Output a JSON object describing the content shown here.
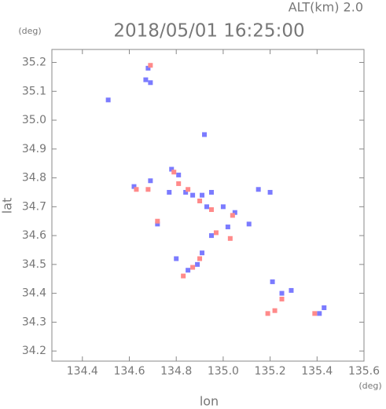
{
  "chart_data": {
    "type": "scatter",
    "title": "2018/05/01 16:25:00",
    "altitude_label": "ALT(km) 2.0",
    "x_label": "lon",
    "y_label": "lat",
    "x_unit": "(deg)",
    "y_unit": "(deg)",
    "xlim": [
      134.27,
      135.6
    ],
    "ylim": [
      34.165,
      35.245
    ],
    "xticks": [
      134.4,
      134.6,
      134.8,
      {
        "value": 135,
        "label": "135.0"
      },
      135.2,
      135.4,
      135.6
    ],
    "yticks": [
      34.2,
      34.3,
      34.4,
      34.5,
      34.6,
      34.7,
      34.8,
      34.9,
      {
        "value": 35,
        "label": "35.0"
      },
      35.1,
      35.2
    ],
    "series": [
      {
        "color": "#7b7bff",
        "x": [
          134.68,
          134.67,
          134.69,
          134.51,
          134.92,
          134.78,
          134.81,
          134.62,
          134.69,
          134.77,
          134.84,
          134.87,
          134.91,
          134.95,
          134.93,
          135.0,
          135.05,
          135.02,
          134.95,
          134.91,
          134.89,
          134.85,
          134.8,
          135.15,
          135.2,
          135.21,
          135.25,
          135.29,
          135.41,
          135.43,
          134.72,
          135.11
        ],
        "y": [
          35.18,
          35.14,
          35.13,
          35.07,
          34.95,
          34.83,
          34.81,
          34.77,
          34.79,
          34.75,
          34.75,
          34.74,
          34.74,
          34.75,
          34.7,
          34.7,
          34.68,
          34.63,
          34.6,
          34.54,
          34.5,
          34.48,
          34.52,
          34.76,
          34.75,
          34.44,
          34.4,
          34.41,
          34.33,
          34.35,
          34.64,
          34.64
        ]
      },
      {
        "color": "#ff8a8a",
        "x": [
          134.69,
          134.79,
          134.81,
          134.68,
          134.85,
          134.9,
          134.95,
          135.04,
          134.97,
          134.9,
          134.87,
          134.83,
          135.22,
          135.19,
          135.25,
          135.39,
          134.72,
          134.63,
          135.03
        ],
        "y": [
          35.19,
          34.82,
          34.78,
          34.76,
          34.76,
          34.72,
          34.69,
          34.67,
          34.61,
          34.52,
          34.49,
          34.46,
          34.34,
          34.33,
          34.38,
          34.33,
          34.65,
          34.76,
          34.59
        ]
      }
    ]
  }
}
